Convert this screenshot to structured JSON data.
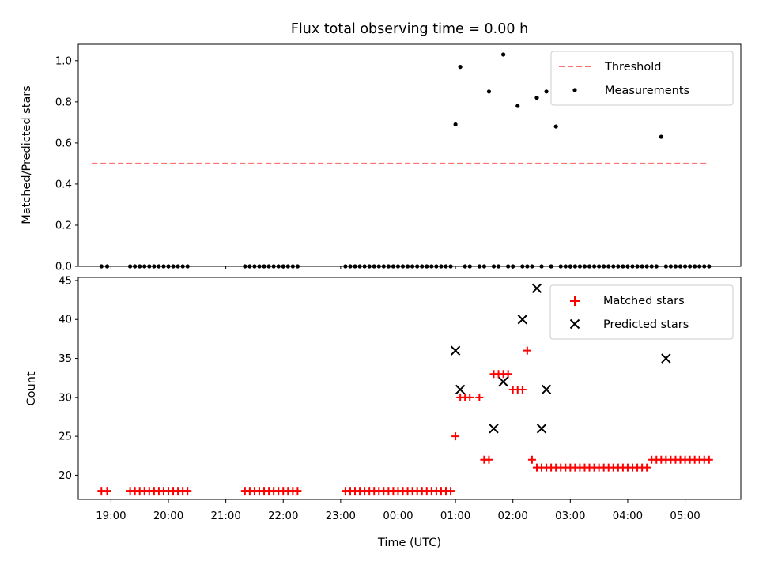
{
  "chart_data": [
    {
      "type": "scatter",
      "title": "Flux total observing time = 0.00 h",
      "xlabel": "",
      "ylabel": "Matched/Predicted stars",
      "ylim": [
        0,
        1.08
      ],
      "yticks": [
        "0.0",
        "0.2",
        "0.4",
        "0.6",
        "0.8",
        "1.0"
      ],
      "xlim_hours": [
        18.43,
        5.97
      ],
      "legend_position": "top-right",
      "grid": false,
      "series": [
        {
          "name": "Threshold",
          "kind": "dashed-line",
          "color": "#ff7070",
          "x": [
            "18:40",
            "05:25"
          ],
          "y": [
            0.5,
            0.5
          ]
        },
        {
          "name": "Measurements",
          "kind": "points",
          "color": "#000000",
          "x": [
            "18:50",
            "18:56",
            "19:20",
            "19:25",
            "19:30",
            "19:35",
            "19:40",
            "19:45",
            "19:50",
            "19:55",
            "20:00",
            "20:05",
            "20:10",
            "20:15",
            "20:20",
            "21:20",
            "21:25",
            "21:30",
            "21:35",
            "21:40",
            "21:45",
            "21:50",
            "21:55",
            "22:00",
            "22:05",
            "22:10",
            "22:15",
            "23:05",
            "23:10",
            "23:15",
            "23:20",
            "23:25",
            "23:30",
            "23:35",
            "23:40",
            "23:45",
            "23:50",
            "23:55",
            "00:00",
            "00:05",
            "00:10",
            "00:15",
            "00:20",
            "00:25",
            "00:30",
            "00:35",
            "00:40",
            "00:45",
            "00:50",
            "00:55",
            "01:00",
            "01:05",
            "01:10",
            "01:15",
            "01:25",
            "01:30",
            "01:35",
            "01:40",
            "01:45",
            "01:50",
            "01:55",
            "02:00",
            "02:05",
            "02:10",
            "02:15",
            "02:20",
            "02:25",
            "02:30",
            "02:35",
            "02:40",
            "02:45",
            "02:50",
            "02:55",
            "03:00",
            "03:05",
            "03:10",
            "03:15",
            "03:20",
            "03:25",
            "03:30",
            "03:35",
            "03:40",
            "03:45",
            "03:50",
            "03:55",
            "04:00",
            "04:05",
            "04:10",
            "04:15",
            "04:20",
            "04:25",
            "04:30",
            "04:35",
            "04:40",
            "04:45",
            "04:50",
            "04:55",
            "05:00",
            "05:05",
            "05:10",
            "05:15",
            "05:20",
            "05:25"
          ],
          "y": [
            0,
            0,
            0,
            0,
            0,
            0,
            0,
            0,
            0,
            0,
            0,
            0,
            0,
            0,
            0,
            0,
            0,
            0,
            0,
            0,
            0,
            0,
            0,
            0,
            0,
            0,
            0,
            0,
            0,
            0,
            0,
            0,
            0,
            0,
            0,
            0,
            0,
            0,
            0,
            0,
            0,
            0,
            0,
            0,
            0,
            0,
            0,
            0,
            0,
            0,
            0.69,
            0.97,
            0,
            0,
            0,
            0,
            0.85,
            0,
            0,
            1.03,
            0,
            0,
            0.78,
            0,
            0,
            0,
            0.82,
            0,
            0.85,
            0,
            0.68,
            0,
            0,
            0,
            0,
            0,
            0,
            0,
            0,
            0,
            0,
            0,
            0,
            0,
            0,
            0,
            0,
            0,
            0,
            0,
            0,
            0,
            0.63,
            0,
            0,
            0,
            0,
            0,
            0,
            0,
            0,
            0,
            0
          ]
        }
      ]
    },
    {
      "type": "scatter",
      "title": "",
      "xlabel": "Time (UTC)",
      "ylabel": "Count",
      "ylim": [
        16.9,
        45.4
      ],
      "yticks": [
        "20",
        "25",
        "30",
        "35",
        "40",
        "45"
      ],
      "xticks": [
        "19:00",
        "20:00",
        "21:00",
        "22:00",
        "23:00",
        "00:00",
        "01:00",
        "02:00",
        "03:00",
        "04:00",
        "05:00"
      ],
      "legend_position": "top-right",
      "grid": false,
      "series": [
        {
          "name": "Matched stars",
          "marker": "+",
          "color": "#ff0000",
          "x": [
            "18:50",
            "18:56",
            "19:20",
            "19:25",
            "19:30",
            "19:35",
            "19:40",
            "19:45",
            "19:50",
            "19:55",
            "20:00",
            "20:05",
            "20:10",
            "20:15",
            "20:20",
            "21:20",
            "21:25",
            "21:30",
            "21:35",
            "21:40",
            "21:45",
            "21:50",
            "21:55",
            "22:00",
            "22:05",
            "22:10",
            "22:15",
            "23:05",
            "23:10",
            "23:15",
            "23:20",
            "23:25",
            "23:30",
            "23:35",
            "23:40",
            "23:45",
            "23:50",
            "23:55",
            "00:00",
            "00:05",
            "00:10",
            "00:15",
            "00:20",
            "00:25",
            "00:30",
            "00:35",
            "00:40",
            "00:45",
            "00:50",
            "00:55",
            "01:00",
            "01:05",
            "01:10",
            "01:15",
            "01:25",
            "01:30",
            "01:35",
            "01:40",
            "01:45",
            "01:50",
            "01:55",
            "02:00",
            "02:05",
            "02:10",
            "02:15",
            "02:20",
            "02:25",
            "02:30",
            "02:35",
            "02:40",
            "02:45",
            "02:50",
            "02:55",
            "03:00",
            "03:05",
            "03:10",
            "03:15",
            "03:20",
            "03:25",
            "03:30",
            "03:35",
            "03:40",
            "03:45",
            "03:50",
            "03:55",
            "04:00",
            "04:05",
            "04:10",
            "04:15",
            "04:20",
            "04:25",
            "04:30",
            "04:35",
            "04:40",
            "04:45",
            "04:50",
            "04:55",
            "05:00",
            "05:05",
            "05:10",
            "05:15",
            "05:20",
            "05:25"
          ],
          "y": [
            18,
            18,
            18,
            18,
            18,
            18,
            18,
            18,
            18,
            18,
            18,
            18,
            18,
            18,
            18,
            18,
            18,
            18,
            18,
            18,
            18,
            18,
            18,
            18,
            18,
            18,
            18,
            18,
            18,
            18,
            18,
            18,
            18,
            18,
            18,
            18,
            18,
            18,
            18,
            18,
            18,
            18,
            18,
            18,
            18,
            18,
            18,
            18,
            18,
            18,
            25,
            30,
            30,
            30,
            30,
            22,
            22,
            33,
            33,
            33,
            33,
            31,
            31,
            31,
            36,
            22,
            21,
            21,
            21,
            21,
            21,
            21,
            21,
            21,
            21,
            21,
            21,
            21,
            21,
            21,
            21,
            21,
            21,
            21,
            21,
            21,
            21,
            21,
            21,
            21,
            22,
            22,
            22,
            22,
            22,
            22,
            22,
            22,
            22,
            22,
            22,
            22,
            22
          ]
        },
        {
          "name": "Predicted stars",
          "marker": "x",
          "color": "#000000",
          "x": [
            "01:00",
            "01:05",
            "01:40",
            "01:50",
            "02:10",
            "02:25",
            "02:30",
            "02:35",
            "04:40"
          ],
          "y": [
            36,
            31,
            26,
            32,
            40,
            44,
            26,
            31,
            35
          ]
        }
      ]
    }
  ]
}
